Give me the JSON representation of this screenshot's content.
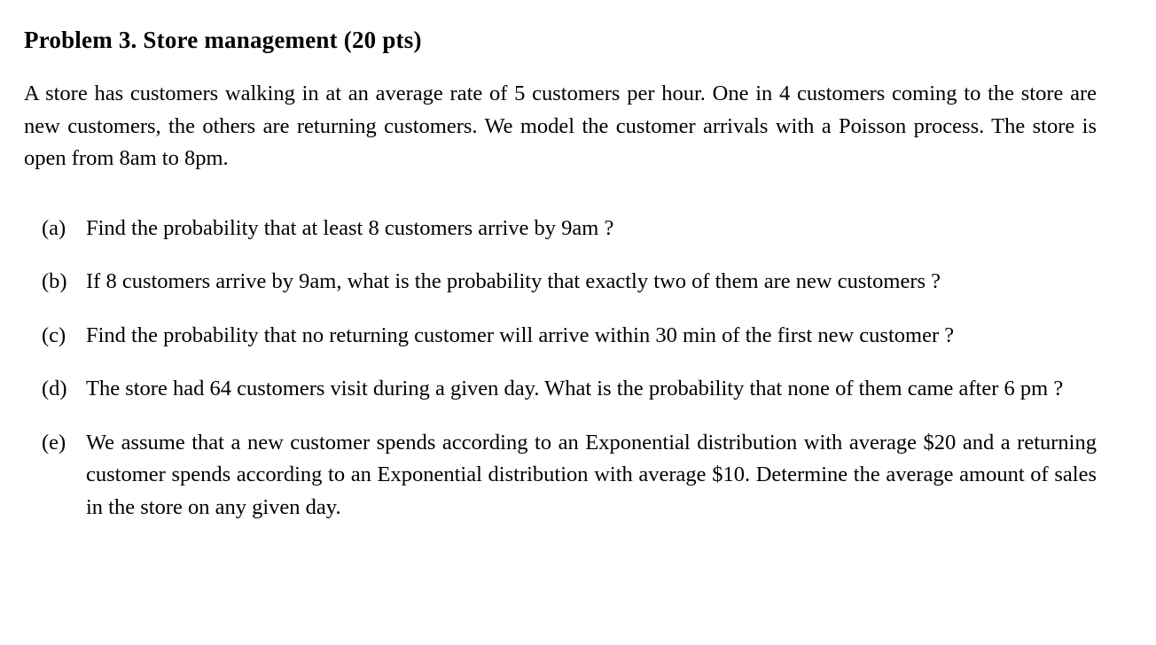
{
  "page": {
    "title": "Problem 3. Store management (20 pts)",
    "intro": "A store has customers walking in at an average rate of 5 customers per hour. One in 4 customers coming to the store are new customers, the others are returning customers. We model the customer arrivals with a Poisson process. The store is open from 8am to 8pm.",
    "items": [
      {
        "label": "(a)",
        "text": "Find the probability that at least 8 customers arrive by 9am ?"
      },
      {
        "label": "(b)",
        "text": "If 8 customers arrive by 9am, what is the probability that exactly two of them are new customers ?"
      },
      {
        "label": "(c)",
        "text": "Find the probability that no returning customer will arrive within 30 min of the first new customer ?"
      },
      {
        "label": "(d)",
        "text": "The store had 64 customers visit during a given day. What is the probability that none of them came after 6 pm ?"
      },
      {
        "label": "(e)",
        "text": "We assume that a new customer spends according to an Exponential distribution with average $20 and a returning customer spends according to an Exponential distribution with average $10. Determine the average amount of sales in the store on any given day."
      }
    ]
  }
}
